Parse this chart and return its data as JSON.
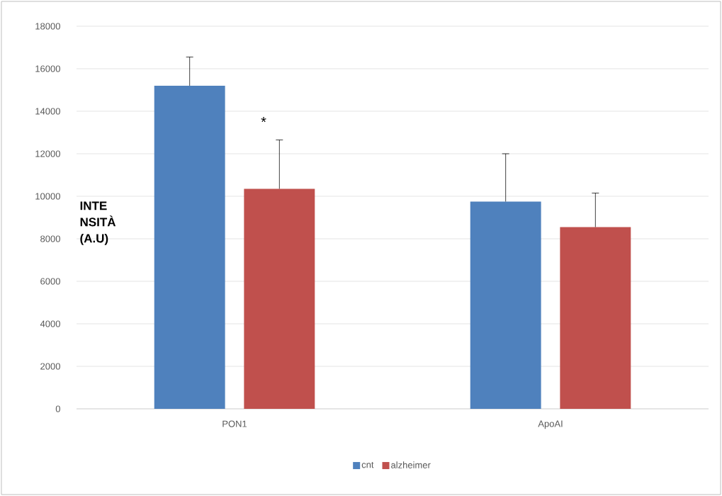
{
  "chart_data": {
    "type": "bar",
    "ylabel": "INTE NSITÀ (A.U)",
    "categories": [
      "PON1",
      "ApoAI"
    ],
    "series": [
      {
        "name": "cnt",
        "color": "#4f81bd",
        "values": [
          15200,
          9750
        ],
        "errors": [
          [
            15200,
            16550
          ],
          [
            9750,
            12000
          ]
        ]
      },
      {
        "name": "alzheimer",
        "color": "#c0504d",
        "values": [
          10350,
          8550
        ],
        "errors": [
          [
            10350,
            12650
          ],
          [
            8550,
            10150
          ]
        ]
      }
    ],
    "ylim": [
      0,
      18000
    ],
    "yticks": [
      0,
      2000,
      4000,
      6000,
      8000,
      10000,
      12000,
      14000,
      16000,
      18000
    ],
    "grid": "y",
    "legend": "bottom",
    "annotations": [
      "*"
    ]
  }
}
